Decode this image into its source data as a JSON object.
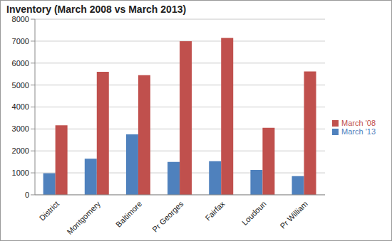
{
  "chart_data": {
    "type": "bar",
    "title": "Inventory (March 2008 vs March 2013)",
    "categories": [
      "District",
      "Montgomery",
      "Baltimore",
      "Pr Georges",
      "Fairfax",
      "Loudoun",
      "Pr William"
    ],
    "series": [
      {
        "name": "March '13",
        "color": "#4f81bd",
        "values": [
          980,
          1640,
          2750,
          1500,
          1530,
          1130,
          850
        ]
      },
      {
        "name": "March '08",
        "color": "#c0504d",
        "values": [
          3170,
          5600,
          5450,
          7000,
          7150,
          3050,
          5620
        ]
      }
    ],
    "ylim": [
      0,
      8000
    ],
    "yticks": [
      0,
      1000,
      2000,
      3000,
      4000,
      5000,
      6000,
      7000,
      8000
    ],
    "grid": true,
    "legend": "right"
  }
}
